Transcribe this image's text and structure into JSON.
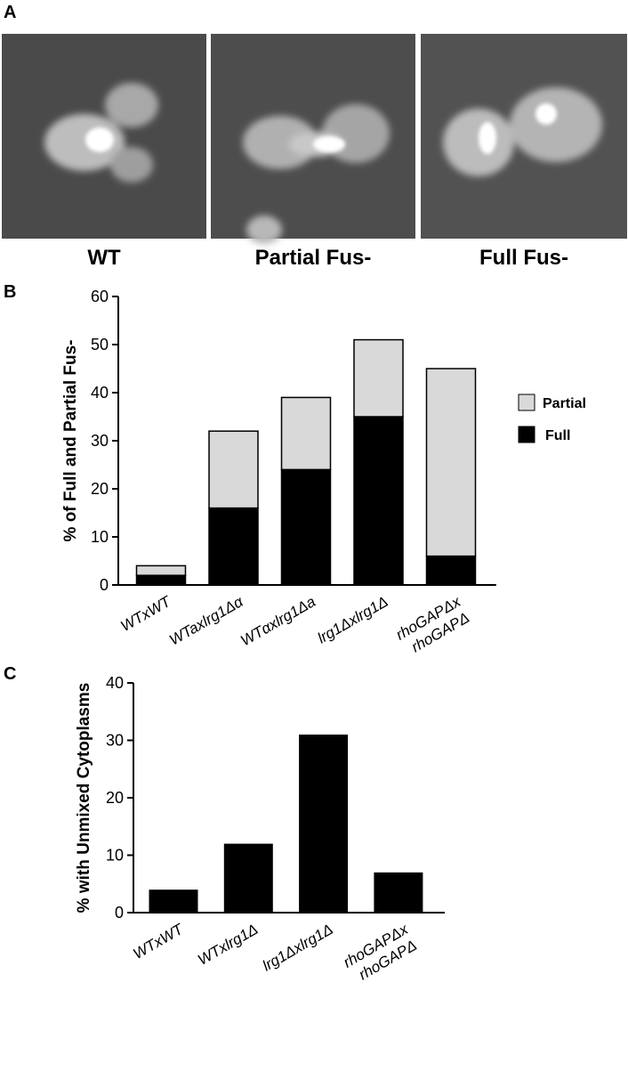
{
  "panel_labels": [
    "A",
    "B",
    "C"
  ],
  "image_captions": [
    "WT",
    "Partial Fus-",
    "Full Fus-"
  ],
  "chart_data": [
    {
      "type": "stacked-bar",
      "ylabel": "% of Full and Partial Fus-",
      "categories": [
        [
          "WTxWT"
        ],
        [
          "WTaxlrg1Δα"
        ],
        [
          "WTαxlrg1Δa"
        ],
        [
          "lrg1Δxlrg1Δ"
        ],
        [
          "rhoGAPΔx",
          "rhoGAPΔ"
        ]
      ],
      "series": [
        {
          "name": "Full",
          "color": "#000000",
          "values": [
            2,
            16,
            24,
            35,
            6
          ]
        },
        {
          "name": "Partial",
          "color": "#d9d9d9",
          "values": [
            2,
            16,
            15,
            16,
            39
          ]
        }
      ],
      "ylim": [
        0,
        60
      ],
      "yticks": [
        0,
        10,
        20,
        30,
        40,
        50,
        60
      ],
      "legend": "right"
    },
    {
      "type": "bar",
      "ylabel": "% with  Unmixed Cytoplasms",
      "categories": [
        [
          "WTxWT"
        ],
        [
          "WTxlrg1Δ"
        ],
        [
          "lrg1Δxlrg1Δ"
        ],
        [
          "rhoGAPΔx",
          "rhoGAPΔ"
        ]
      ],
      "values": [
        4,
        12,
        31,
        7
      ],
      "color": "#000000",
      "ylim": [
        0,
        40
      ],
      "yticks": [
        0,
        10,
        20,
        30,
        40
      ]
    }
  ]
}
